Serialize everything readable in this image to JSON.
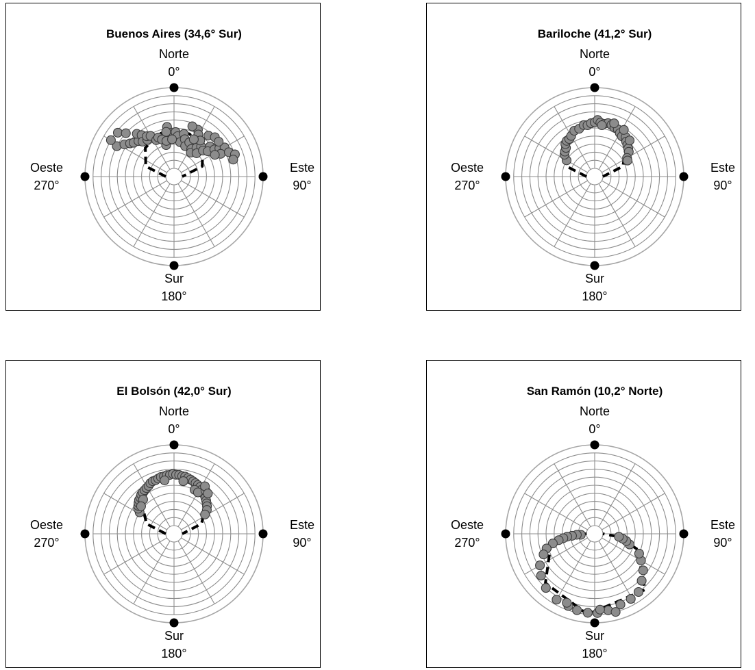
{
  "chart_data": [
    {
      "type": "scatter",
      "title": "Buenos Aires (34,6° Sur)",
      "directions": {
        "north": {
          "name": "Norte",
          "deg": "0°"
        },
        "east": {
          "name": "Este",
          "deg": "90°"
        },
        "south": {
          "name": "Sur",
          "deg": "180°"
        },
        "west": {
          "name": "Oeste",
          "deg": "270°"
        }
      },
      "rings": 10,
      "spokes_every_deg": 30,
      "curve": [
        [
          270,
          0
        ],
        [
          290,
          0.27
        ],
        [
          315,
          0.4
        ],
        [
          340,
          0.46
        ],
        [
          0,
          0.47
        ],
        [
          20,
          0.46
        ],
        [
          45,
          0.4
        ],
        [
          70,
          0.27
        ],
        [
          90,
          0
        ]
      ],
      "points": [
        [
          298,
          0.7
        ],
        [
          303,
          0.63
        ],
        [
          307,
          0.58
        ],
        [
          310,
          0.55
        ],
        [
          315,
          0.52
        ],
        [
          319,
          0.6
        ],
        [
          322,
          0.55
        ],
        [
          318,
          0.48
        ],
        [
          324,
          0.46
        ],
        [
          300,
          0.8
        ],
        [
          308,
          0.78
        ],
        [
          312,
          0.7
        ],
        [
          326,
          0.5
        ],
        [
          330,
          0.48
        ],
        [
          334,
          0.4
        ],
        [
          338,
          0.42
        ],
        [
          342,
          0.38
        ],
        [
          346,
          0.3
        ],
        [
          348,
          0.35
        ],
        [
          352,
          0.52
        ],
        [
          356,
          0.44
        ],
        [
          2,
          0.45
        ],
        [
          5,
          0.4
        ],
        [
          10,
          0.33
        ],
        [
          13,
          0.44
        ],
        [
          16,
          0.38
        ],
        [
          20,
          0.3
        ],
        [
          24,
          0.36
        ],
        [
          27,
          0.55
        ],
        [
          30,
          0.5
        ],
        [
          32,
          0.3
        ],
        [
          35,
          0.26
        ],
        [
          38,
          0.35
        ],
        [
          42,
          0.4
        ],
        [
          44,
          0.3
        ],
        [
          48,
          0.38
        ],
        [
          50,
          0.48
        ],
        [
          53,
          0.42
        ],
        [
          56,
          0.5
        ],
        [
          58,
          0.56
        ],
        [
          60,
          0.62
        ],
        [
          64,
          0.54
        ],
        [
          66,
          0.64
        ],
        [
          70,
          0.7
        ],
        [
          74,
          0.66
        ],
        [
          36,
          0.45
        ],
        [
          40,
          0.56
        ],
        [
          46,
          0.6
        ],
        [
          52,
          0.6
        ],
        [
          62,
          0.47
        ],
        [
          357,
          0.36
        ],
        [
          350,
          0.46
        ],
        [
          20,
          0.56
        ],
        [
          28,
          0.42
        ]
      ]
    },
    {
      "type": "scatter",
      "title": "Bariloche (41,2° Sur)",
      "directions": {
        "north": {
          "name": "Norte",
          "deg": "0°"
        },
        "east": {
          "name": "Este",
          "deg": "90°"
        },
        "south": {
          "name": "Sur",
          "deg": "180°"
        },
        "west": {
          "name": "Oeste",
          "deg": "270°"
        }
      },
      "rings": 10,
      "spokes_every_deg": 30,
      "curve": [
        [
          270,
          0
        ],
        [
          290,
          0.27
        ],
        [
          315,
          0.45
        ],
        [
          340,
          0.53
        ],
        [
          0,
          0.55
        ],
        [
          20,
          0.53
        ],
        [
          45,
          0.45
        ],
        [
          70,
          0.27
        ],
        [
          90,
          0
        ]
      ],
      "points": [
        [
          300,
          0.3
        ],
        [
          306,
          0.36
        ],
        [
          310,
          0.38
        ],
        [
          315,
          0.4
        ],
        [
          318,
          0.44
        ],
        [
          322,
          0.46
        ],
        [
          326,
          0.46
        ],
        [
          330,
          0.48
        ],
        [
          336,
          0.52
        ],
        [
          342,
          0.52
        ],
        [
          348,
          0.55
        ],
        [
          352,
          0.54
        ],
        [
          356,
          0.56
        ],
        [
          0,
          0.57
        ],
        [
          3,
          0.6
        ],
        [
          6,
          0.57
        ],
        [
          10,
          0.56
        ],
        [
          14,
          0.58
        ],
        [
          18,
          0.57
        ],
        [
          22,
          0.55
        ],
        [
          26,
          0.55
        ],
        [
          30,
          0.52
        ],
        [
          34,
          0.5
        ],
        [
          38,
          0.52
        ],
        [
          42,
          0.48
        ],
        [
          46,
          0.46
        ],
        [
          50,
          0.44
        ],
        [
          54,
          0.42
        ],
        [
          60,
          0.36
        ],
        [
          64,
          0.35
        ],
        [
          44,
          0.52
        ],
        [
          32,
          0.58
        ],
        [
          20,
          0.6
        ],
        [
          8,
          0.54
        ]
      ]
    },
    {
      "type": "scatter",
      "title": "El Bolsón (42,0° Sur)",
      "directions": {
        "north": {
          "name": "Norte",
          "deg": "0°"
        },
        "east": {
          "name": "Este",
          "deg": "90°"
        },
        "south": {
          "name": "Sur",
          "deg": "180°"
        },
        "west": {
          "name": "Oeste",
          "deg": "270°"
        }
      },
      "rings": 10,
      "spokes_every_deg": 30,
      "curve": [
        [
          270,
          0
        ],
        [
          290,
          0.26
        ],
        [
          315,
          0.47
        ],
        [
          340,
          0.59
        ],
        [
          0,
          0.63
        ],
        [
          20,
          0.59
        ],
        [
          45,
          0.47
        ],
        [
          70,
          0.26
        ],
        [
          90,
          0
        ]
      ],
      "points": [
        [
          302,
          0.4
        ],
        [
          305,
          0.44
        ],
        [
          308,
          0.46
        ],
        [
          311,
          0.48
        ],
        [
          314,
          0.5
        ],
        [
          317,
          0.51
        ],
        [
          320,
          0.53
        ],
        [
          323,
          0.54
        ],
        [
          326,
          0.55
        ],
        [
          329,
          0.56
        ],
        [
          332,
          0.57
        ],
        [
          335,
          0.59
        ],
        [
          338,
          0.6
        ],
        [
          341,
          0.6
        ],
        [
          344,
          0.61
        ],
        [
          347,
          0.62
        ],
        [
          350,
          0.62
        ],
        [
          353,
          0.63
        ],
        [
          356,
          0.63
        ],
        [
          359,
          0.64
        ],
        [
          2,
          0.63
        ],
        [
          5,
          0.63
        ],
        [
          8,
          0.62
        ],
        [
          11,
          0.62
        ],
        [
          14,
          0.61
        ],
        [
          17,
          0.6
        ],
        [
          20,
          0.59
        ],
        [
          23,
          0.58
        ],
        [
          26,
          0.57
        ],
        [
          29,
          0.56
        ],
        [
          32,
          0.54
        ],
        [
          35,
          0.53
        ],
        [
          38,
          0.51
        ],
        [
          41,
          0.49
        ],
        [
          44,
          0.47
        ],
        [
          47,
          0.45
        ],
        [
          50,
          0.43
        ],
        [
          54,
          0.4
        ],
        [
          58,
          0.35
        ],
        [
          25,
          0.5
        ],
        [
          30,
          0.49
        ],
        [
          36,
          0.56
        ],
        [
          10,
          0.56
        ],
        [
          350,
          0.57
        ],
        [
          318,
          0.47
        ],
        [
          310,
          0.43
        ],
        [
          33,
          0.6
        ],
        [
          40,
          0.55
        ]
      ]
    },
    {
      "type": "scatter",
      "title": "San Ramón (10,2° Norte)",
      "directions": {
        "north": {
          "name": "Norte",
          "deg": "0°"
        },
        "east": {
          "name": "Este",
          "deg": "90°"
        },
        "south": {
          "name": "Sur",
          "deg": "180°"
        },
        "west": {
          "name": "Oeste",
          "deg": "270°"
        }
      },
      "rings": 10,
      "spokes_every_deg": 30,
      "curve": [
        [
          270,
          0
        ],
        [
          270,
          0.2
        ],
        [
          258,
          0.45
        ],
        [
          225,
          0.76
        ],
        [
          185,
          0.9
        ],
        [
          138,
          0.83
        ],
        [
          110,
          0.46
        ],
        [
          97,
          0.2
        ],
        [
          90,
          0
        ]
      ],
      "points": [
        [
          266,
          0.07
        ],
        [
          267,
          0.12
        ],
        [
          265,
          0.18
        ],
        [
          264,
          0.24
        ],
        [
          262,
          0.29
        ],
        [
          260,
          0.35
        ],
        [
          257,
          0.43
        ],
        [
          253,
          0.52
        ],
        [
          248,
          0.58
        ],
        [
          240,
          0.68
        ],
        [
          232,
          0.74
        ],
        [
          222,
          0.8
        ],
        [
          210,
          0.84
        ],
        [
          200,
          0.85
        ],
        [
          193,
          0.87
        ],
        [
          185,
          0.88
        ],
        [
          178,
          0.88
        ],
        [
          170,
          0.86
        ],
        [
          160,
          0.83
        ],
        [
          151,
          0.82
        ],
        [
          143,
          0.8
        ],
        [
          135,
          0.72
        ],
        [
          127,
          0.65
        ],
        [
          120,
          0.56
        ],
        [
          114,
          0.5
        ],
        [
          107,
          0.35
        ],
        [
          103,
          0.3
        ],
        [
          100,
          0.25
        ],
        [
          97,
          0.2
        ],
        [
          176,
          0.84
        ],
        [
          202,
          0.82
        ],
        [
          165,
          0.9
        ]
      ]
    }
  ]
}
